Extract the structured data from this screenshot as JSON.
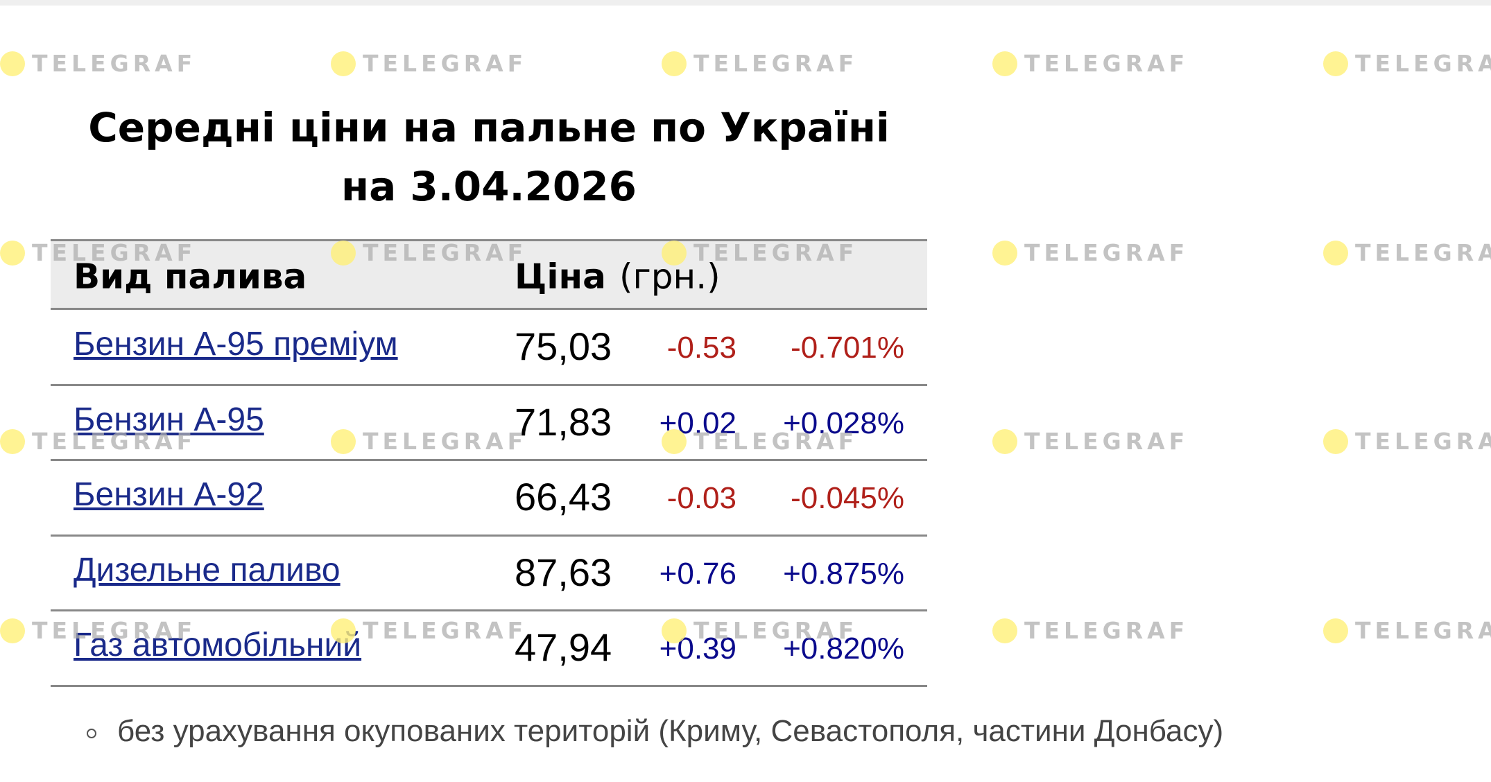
{
  "watermark": "TELEGRAF",
  "title": [
    "Середні ціни на пальне по Україні",
    "на 3.04.2026"
  ],
  "table": {
    "header": {
      "name": "Вид палива",
      "price": "Ціна",
      "unit": "(грн.)"
    },
    "rows": [
      {
        "name": "Бензин А-95 преміум",
        "price": "75,03",
        "change": "-0.53",
        "percent": "-0.701%",
        "color": "#b0201a"
      },
      {
        "name": "Бензин А-95",
        "price": "71,83",
        "change": "+0.02",
        "percent": "+0.028%",
        "color": "#0a0a8c"
      },
      {
        "name": "Бензин А-92",
        "price": "66,43",
        "change": "-0.03",
        "percent": "-0.045%",
        "color": "#b0201a"
      },
      {
        "name": "Дизельне паливо",
        "price": "87,63",
        "change": "+0.76",
        "percent": "+0.875%",
        "color": "#0a0a8c"
      },
      {
        "name": "Газ автомобільний",
        "price": "47,94",
        "change": "+0.39",
        "percent": "+0.820%",
        "color": "#0a0a8c"
      }
    ]
  },
  "footnote": "без урахування окупованих територій (Криму, Севастополя, частини Донбасу)"
}
